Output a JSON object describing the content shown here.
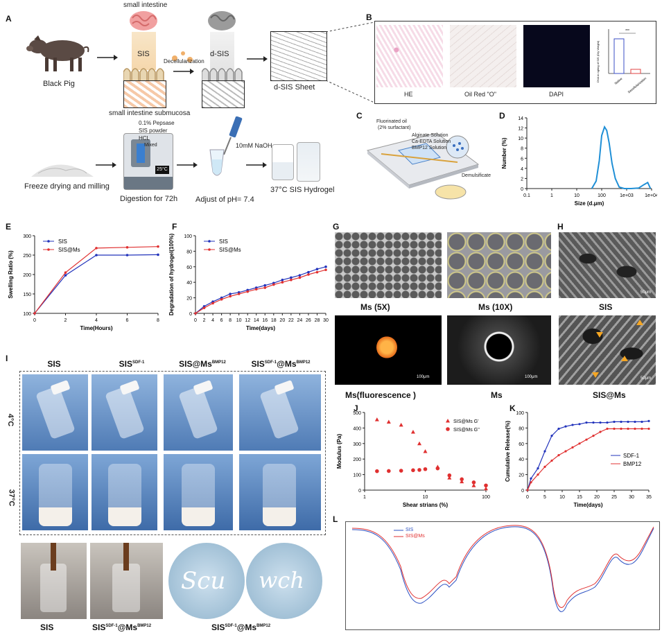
{
  "panels": {
    "A": "A",
    "B": "B",
    "C": "C",
    "D": "D",
    "E": "E",
    "F": "F",
    "G": "G",
    "H": "H",
    "I": "I",
    "J": "J",
    "K": "K",
    "L": "L"
  },
  "panelA": {
    "small_intestine": "small intestine",
    "sis": "SIS",
    "dsis": "d-SIS",
    "decell": "Decellularization",
    "black_pig": "Black Pig",
    "submucosa": "small intestine submucosa",
    "sheet": "d-SIS Sheet",
    "freeze": "Freeze drying and milling",
    "pepsase": "0.1% Pepsase",
    "sis_powder": "SIS powder",
    "hcl": "HCL",
    "mixed": "Mixed",
    "temp_display": "25°C",
    "digestion": "Digestion for 72h",
    "naoh": "10mM NaOH",
    "ph": "Adjust of pH= 7.4",
    "hydrogel": "37°C SIS Hydrogel"
  },
  "panelB": {
    "he": "HE",
    "oil": "Oil Red \"O\"",
    "dapi": "DAPI",
    "ylabel": "DNA in ng/mg of SIS (Dry Weight)",
    "cats": [
      "Native",
      "Decellularization"
    ],
    "sig": "***"
  },
  "panelC": {
    "oil": "Fluorinated oil",
    "surf": "(2% surfactant)",
    "alg": "Alginate Solution",
    "ca": "Ca-EDTA Solution",
    "bmp": "BMP12 Solution",
    "demul": "Demulsificate"
  },
  "panelG": {
    "ms5": "Ms (5X)",
    "ms10": "Ms (10X)",
    "msf": "Ms(fluorescence )",
    "ms": "Ms",
    "sb1": "100μm",
    "sb2": "100μm"
  },
  "panelH": {
    "sis": "SIS",
    "sisms": "SIS@Ms",
    "sb": "50μm"
  },
  "panelI": {
    "cols": [
      "SIS",
      "SIS",
      "SIS@Ms",
      "SIS"
    ],
    "col_sup": [
      "",
      "SDF-1",
      "BMP12",
      "SDF-1"
    ],
    "col_mid": [
      "",
      "",
      "",
      "@Ms"
    ],
    "col_sup2": [
      "",
      "",
      "",
      "BMP12"
    ],
    "row_4c": "4°C",
    "row_37c": "37°C",
    "bottom_sis": "SIS",
    "bottom_b": "SIS",
    "bottom_b_sup": "SDF-1",
    "bottom_b_mid": "@Ms",
    "bottom_b_sup2": "BMP12",
    "bottom_c": "SIS",
    "bottom_c_sup": "SDF-1",
    "bottom_c_mid": "@Ms",
    "bottom_c_sup2": "BMP12",
    "write1": "Scu",
    "write2": "wch"
  },
  "panelL": {
    "legend": [
      "SIS",
      "SIS@Ms"
    ]
  },
  "colors": {
    "blue": "#2233bb",
    "red": "#e03030",
    "dlsblue": "#1f8fd6",
    "sky": "#7fa8d9"
  },
  "chart_data": [
    {
      "id": "D",
      "type": "line",
      "xlabel": "Size  (d.μm)",
      "ylabel": "Number   (%)",
      "xscale": "log",
      "xticks": [
        "0.1",
        "1",
        "10",
        "100",
        "1e+03",
        "1e+04"
      ],
      "yticks": [
        "0",
        "2",
        "4",
        "6",
        "8",
        "10",
        "12",
        "14"
      ],
      "ylim": [
        0,
        14
      ],
      "x": [
        40,
        60,
        80,
        100,
        130,
        160,
        200,
        260,
        350,
        500,
        800,
        1500,
        3000,
        5000,
        7000,
        9000
      ],
      "y": [
        0,
        1.5,
        5.5,
        10.5,
        12.2,
        11.5,
        9,
        5,
        2,
        0.3,
        0,
        0,
        0.1,
        0.8,
        1.2,
        0
      ]
    },
    {
      "id": "E",
      "type": "line",
      "xlabel": "Time(Hours)",
      "ylabel": "Swelling Ratio (%)",
      "xticks": [
        "0",
        "2",
        "4",
        "6",
        "8"
      ],
      "yticks": [
        "100",
        "150",
        "200",
        "250",
        "300"
      ],
      "ylim": [
        100,
        300
      ],
      "x": [
        0,
        2,
        4,
        6,
        8
      ],
      "series": [
        {
          "name": "SIS",
          "values": [
            100,
            198,
            250,
            250,
            251
          ]
        },
        {
          "name": "SIS@Ms",
          "values": [
            100,
            205,
            268,
            270,
            272
          ]
        }
      ]
    },
    {
      "id": "F",
      "type": "line",
      "xlabel": "Time(days)",
      "ylabel": "Degradation of hydrogel(100%)",
      "xticks": [
        "0",
        "2",
        "4",
        "6",
        "8",
        "10",
        "12",
        "14",
        "16",
        "18",
        "20",
        "22",
        "24",
        "26",
        "28",
        "30"
      ],
      "yticks": [
        "0",
        "20",
        "40",
        "60",
        "80",
        "100"
      ],
      "ylim": [
        0,
        100
      ],
      "x": [
        0,
        2,
        4,
        6,
        8,
        10,
        12,
        14,
        16,
        18,
        20,
        22,
        24,
        26,
        28,
        30
      ],
      "series": [
        {
          "name": "SIS",
          "values": [
            0,
            9,
            15,
            20,
            25,
            27,
            30,
            33,
            36,
            39,
            43,
            46,
            49,
            53,
            57,
            60
          ]
        },
        {
          "name": "SIS@Ms",
          "values": [
            0,
            7,
            13,
            18,
            22,
            25,
            28,
            31,
            33,
            37,
            40,
            43,
            46,
            50,
            53,
            56
          ]
        }
      ]
    },
    {
      "id": "J",
      "type": "scatter",
      "xlabel": "Shear strians  (%)",
      "ylabel": "Modulus (Pa)",
      "xscale": "log",
      "xticks": [
        "1",
        "10",
        "100"
      ],
      "yticks": [
        "0",
        "100",
        "200",
        "300",
        "400",
        "500"
      ],
      "ylim": [
        0,
        500
      ],
      "series": [
        {
          "name": "SIS@Ms G'",
          "x": [
            1.6,
            2.5,
            4,
            6.3,
            8,
            10,
            16,
            25,
            40,
            63,
            100
          ],
          "values": [
            455,
            440,
            420,
            375,
            300,
            250,
            150,
            80,
            55,
            30,
            10
          ]
        },
        {
          "name": "SIS@Ms G''",
          "x": [
            1.6,
            2.5,
            4,
            6.3,
            8,
            10,
            16,
            25,
            40,
            63,
            100
          ],
          "values": [
            122,
            123,
            125,
            128,
            130,
            135,
            140,
            95,
            70,
            50,
            30
          ]
        }
      ]
    },
    {
      "id": "K",
      "type": "line",
      "xlabel": "Time(days)",
      "ylabel": "Cumulative Release(%)",
      "xticks": [
        "0",
        "5",
        "10",
        "15",
        "20",
        "25",
        "30",
        "35"
      ],
      "yticks": [
        "0",
        "20",
        "40",
        "60",
        "80",
        "100"
      ],
      "ylim": [
        0,
        100
      ],
      "x": [
        0,
        1,
        3,
        5,
        7,
        9,
        11,
        13,
        15,
        17,
        19,
        21,
        23,
        25,
        27,
        29,
        31,
        33,
        35
      ],
      "series": [
        {
          "name": "SDF-1",
          "values": [
            0,
            15,
            28,
            50,
            70,
            79,
            82,
            84,
            85,
            87,
            87,
            87,
            87,
            88,
            88,
            88,
            88,
            88,
            89
          ]
        },
        {
          "name": "BMP12",
          "values": [
            0,
            10,
            20,
            30,
            38,
            45,
            50,
            55,
            60,
            65,
            70,
            75,
            79,
            79,
            79,
            79,
            79,
            79,
            79
          ]
        }
      ]
    }
  ]
}
